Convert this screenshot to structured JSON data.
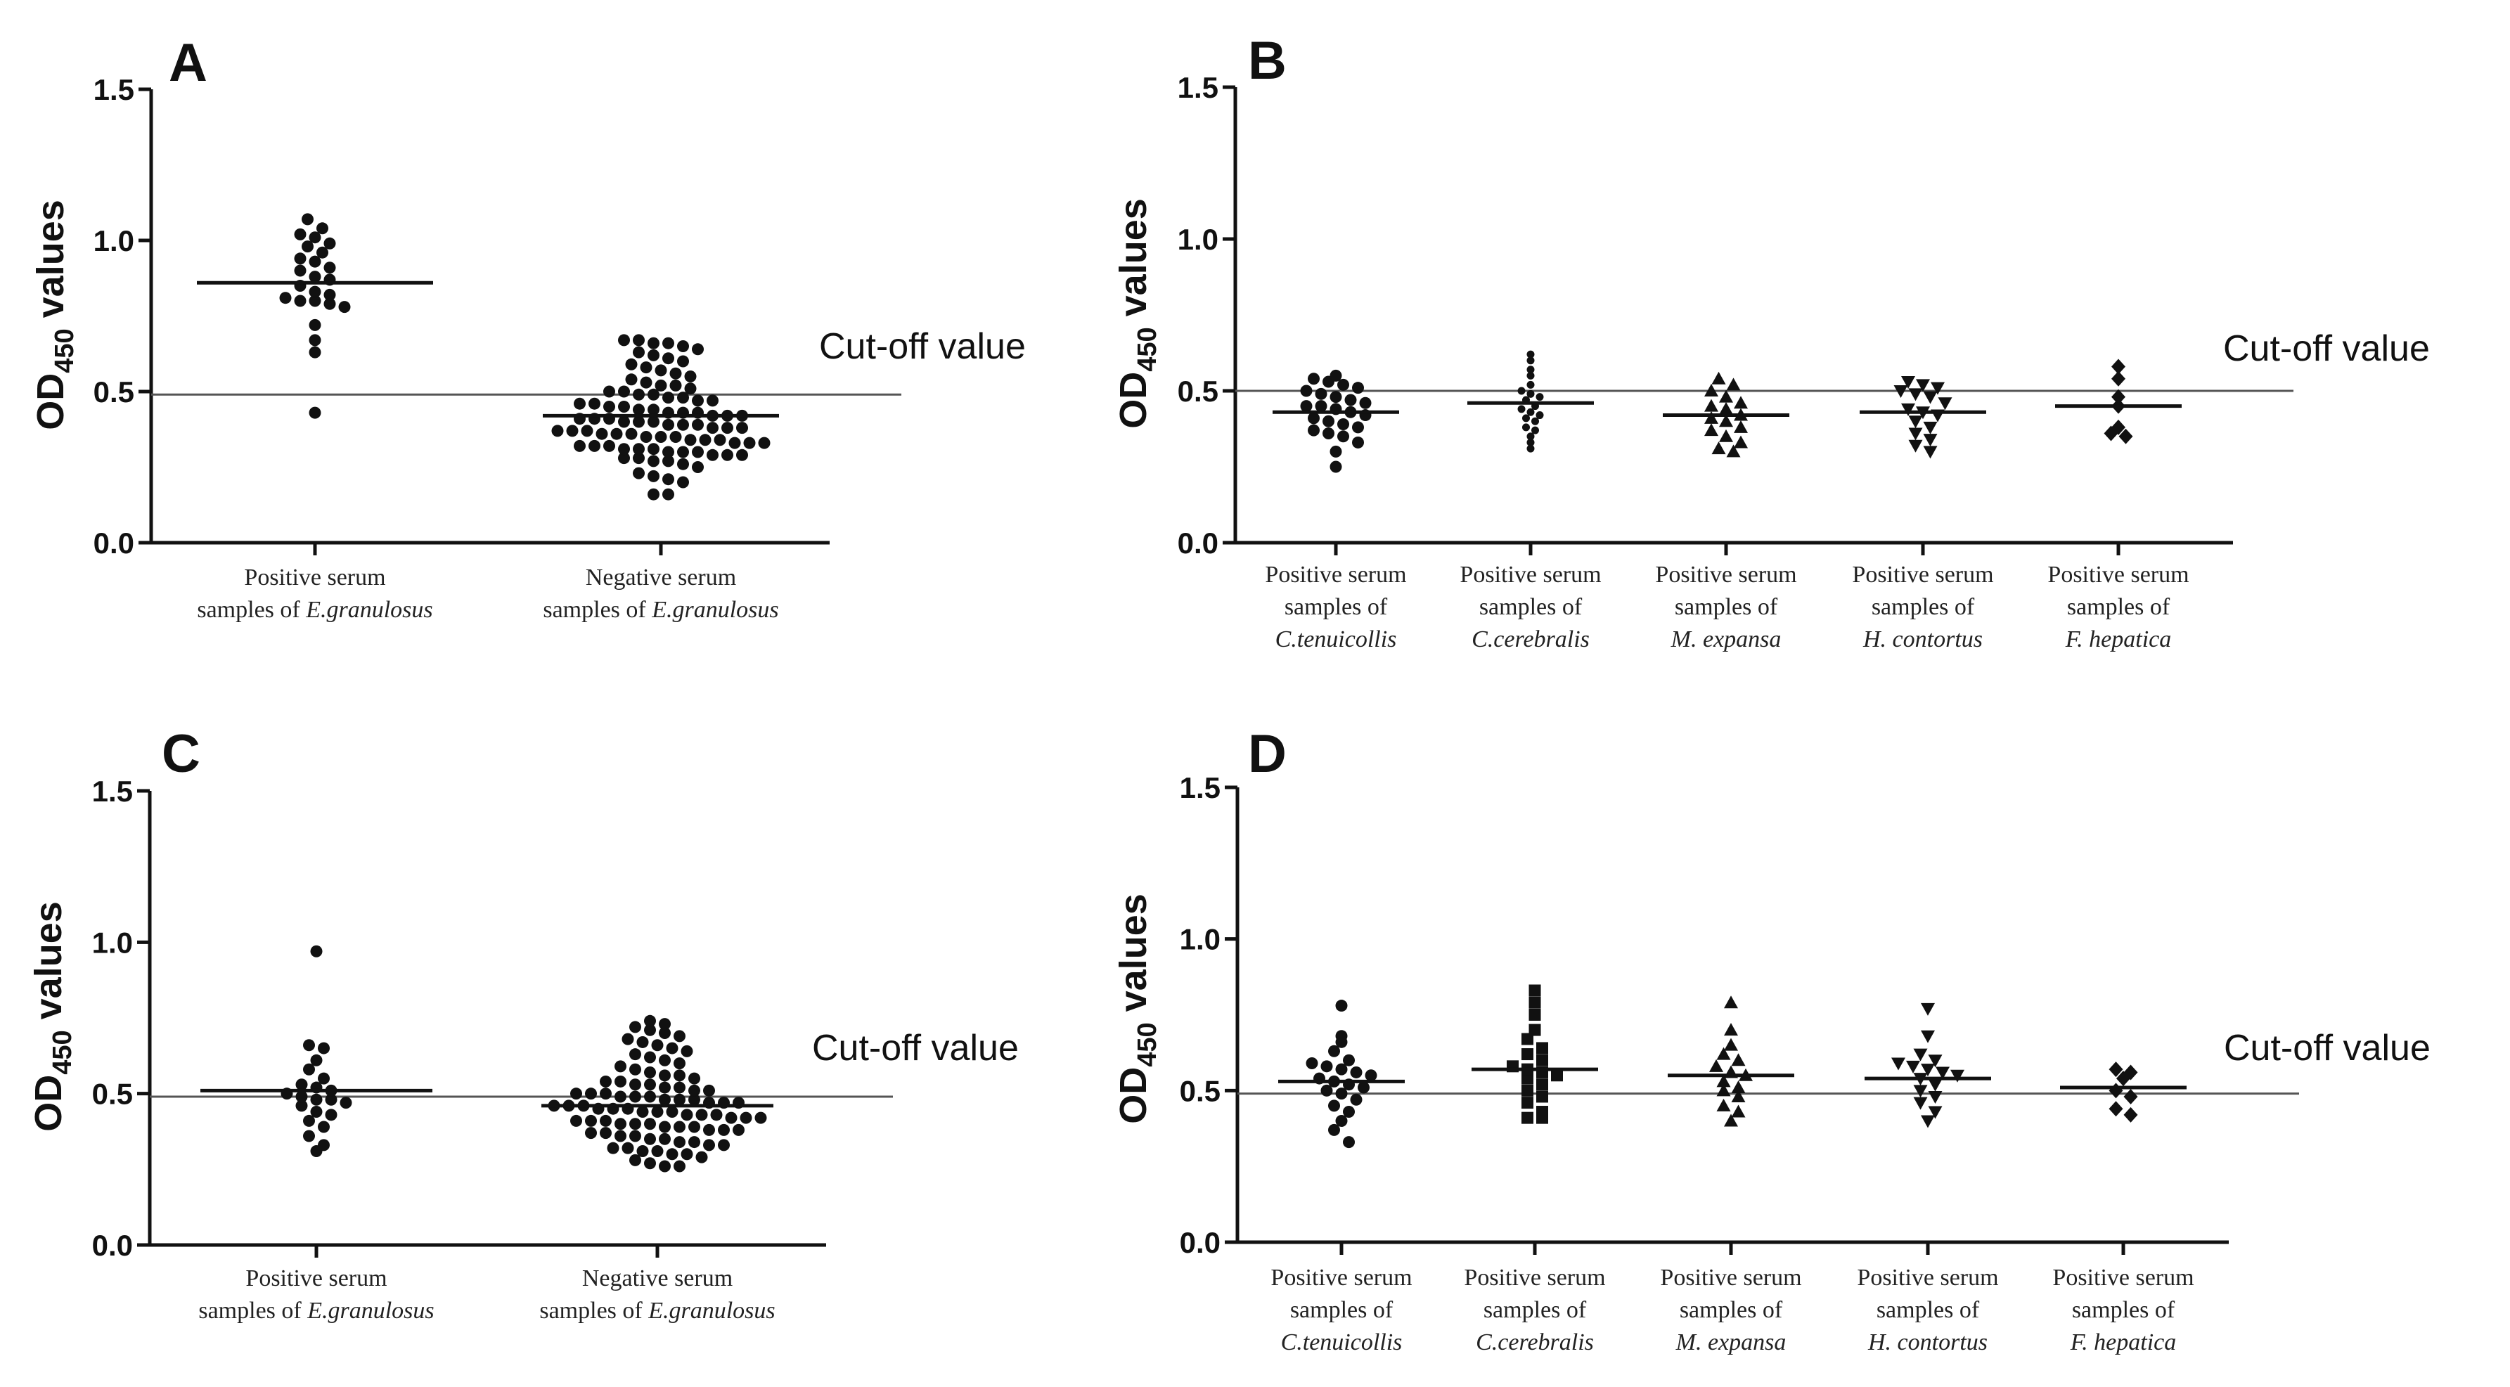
{
  "figure": {
    "axis_title_main": "OD",
    "axis_title_sub": "450",
    "axis_title_tail": " values",
    "cutoff_label": "Cut-off value",
    "y_ticks": [
      "0.0",
      "0.5",
      "1.0",
      "1.5"
    ]
  },
  "chart_data": [
    {
      "type": "scatter",
      "panel": "A",
      "ylim": [
        0,
        1.5
      ],
      "yticks": [
        0,
        0.5,
        1.0,
        1.5
      ],
      "cutoff": 0.49,
      "marker": "circle",
      "groups": [
        {
          "label_lines": [
            [
              "Positive serum"
            ],
            [
              "samples of ",
              "E.granulosus"
            ]
          ],
          "mean": 0.86,
          "values": [
            1.07,
            1.04,
            1.02,
            1.01,
            0.99,
            0.98,
            0.96,
            0.94,
            0.93,
            0.91,
            0.9,
            0.88,
            0.87,
            0.85,
            0.83,
            0.82,
            0.81,
            0.8,
            0.8,
            0.79,
            0.78,
            0.72,
            0.67,
            0.63,
            0.43
          ]
        },
        {
          "label_lines": [
            [
              "Negative serum"
            ],
            [
              "samples of ",
              "E.granulosus"
            ]
          ],
          "mean": 0.42,
          "values": [
            0.67,
            0.67,
            0.66,
            0.66,
            0.65,
            0.64,
            0.63,
            0.62,
            0.61,
            0.6,
            0.59,
            0.58,
            0.57,
            0.56,
            0.55,
            0.54,
            0.53,
            0.52,
            0.52,
            0.51,
            0.5,
            0.5,
            0.49,
            0.49,
            0.48,
            0.48,
            0.47,
            0.47,
            0.46,
            0.46,
            0.45,
            0.45,
            0.44,
            0.44,
            0.43,
            0.43,
            0.43,
            0.42,
            0.42,
            0.42,
            0.41,
            0.41,
            0.41,
            0.4,
            0.4,
            0.4,
            0.39,
            0.39,
            0.39,
            0.38,
            0.38,
            0.38,
            0.37,
            0.37,
            0.37,
            0.36,
            0.36,
            0.36,
            0.35,
            0.35,
            0.35,
            0.34,
            0.34,
            0.34,
            0.33,
            0.33,
            0.33,
            0.32,
            0.32,
            0.32,
            0.31,
            0.31,
            0.31,
            0.3,
            0.3,
            0.3,
            0.29,
            0.29,
            0.29,
            0.28,
            0.28,
            0.27,
            0.27,
            0.26,
            0.25,
            0.23,
            0.22,
            0.21,
            0.2,
            0.16,
            0.16
          ]
        }
      ]
    },
    {
      "type": "scatter",
      "panel": "B",
      "ylim": [
        0,
        1.5
      ],
      "yticks": [
        0,
        0.5,
        1.0,
        1.5
      ],
      "cutoff": 0.5,
      "groups": [
        {
          "marker": "circle",
          "label_lines": [
            [
              "Positive serum"
            ],
            [
              "samples of"
            ],
            [
              "",
              "C.tenuicollis"
            ]
          ],
          "mean": 0.43,
          "values": [
            0.55,
            0.54,
            0.53,
            0.52,
            0.51,
            0.5,
            0.49,
            0.48,
            0.47,
            0.46,
            0.45,
            0.45,
            0.44,
            0.43,
            0.42,
            0.41,
            0.4,
            0.39,
            0.38,
            0.37,
            0.36,
            0.35,
            0.33,
            0.3,
            0.25
          ]
        },
        {
          "marker": "circle-small",
          "label_lines": [
            [
              "Positive serum"
            ],
            [
              "samples of"
            ],
            [
              "",
              "C.cerebralis"
            ]
          ],
          "mean": 0.46,
          "values": [
            0.62,
            0.6,
            0.57,
            0.55,
            0.52,
            0.5,
            0.49,
            0.48,
            0.47,
            0.45,
            0.44,
            0.43,
            0.42,
            0.41,
            0.4,
            0.38,
            0.37,
            0.35,
            0.33,
            0.31
          ]
        },
        {
          "marker": "triangle-up",
          "label_lines": [
            [
              "Positive serum"
            ],
            [
              "samples of"
            ],
            [
              "",
              "M. expansa"
            ]
          ],
          "mean": 0.42,
          "values": [
            0.54,
            0.52,
            0.5,
            0.48,
            0.46,
            0.45,
            0.44,
            0.42,
            0.41,
            0.4,
            0.38,
            0.37,
            0.35,
            0.33,
            0.31,
            0.3
          ]
        },
        {
          "marker": "triangle-down",
          "label_lines": [
            [
              "Positive serum"
            ],
            [
              "samples of"
            ],
            [
              "",
              "H. contortus"
            ]
          ],
          "mean": 0.43,
          "values": [
            0.53,
            0.52,
            0.51,
            0.5,
            0.49,
            0.48,
            0.46,
            0.44,
            0.43,
            0.42,
            0.4,
            0.38,
            0.36,
            0.34,
            0.32,
            0.3
          ]
        },
        {
          "marker": "diamond",
          "label_lines": [
            [
              "Positive serum"
            ],
            [
              "samples of"
            ],
            [
              "",
              "F. hepatica"
            ]
          ],
          "mean": 0.45,
          "values": [
            0.58,
            0.54,
            0.48,
            0.45,
            0.38,
            0.36,
            0.35
          ]
        }
      ]
    },
    {
      "type": "scatter",
      "panel": "C",
      "ylim": [
        0,
        1.5
      ],
      "yticks": [
        0,
        0.5,
        1.0,
        1.5
      ],
      "cutoff": 0.49,
      "marker": "circle",
      "groups": [
        {
          "label_lines": [
            [
              "Positive serum"
            ],
            [
              "samples of ",
              "E.granulosus"
            ]
          ],
          "mean": 0.51,
          "values": [
            0.97,
            0.66,
            0.65,
            0.61,
            0.58,
            0.55,
            0.53,
            0.52,
            0.51,
            0.5,
            0.49,
            0.48,
            0.48,
            0.47,
            0.46,
            0.44,
            0.43,
            0.41,
            0.39,
            0.36,
            0.33,
            0.31
          ]
        },
        {
          "label_lines": [
            [
              "Negative serum"
            ],
            [
              "samples of ",
              "E.granulosus"
            ]
          ],
          "mean": 0.46,
          "values": [
            0.74,
            0.73,
            0.72,
            0.71,
            0.7,
            0.69,
            0.68,
            0.67,
            0.66,
            0.65,
            0.64,
            0.63,
            0.62,
            0.61,
            0.6,
            0.59,
            0.58,
            0.57,
            0.56,
            0.56,
            0.55,
            0.54,
            0.54,
            0.53,
            0.53,
            0.52,
            0.52,
            0.51,
            0.51,
            0.5,
            0.5,
            0.5,
            0.49,
            0.49,
            0.49,
            0.48,
            0.48,
            0.48,
            0.47,
            0.47,
            0.47,
            0.46,
            0.46,
            0.46,
            0.45,
            0.45,
            0.45,
            0.44,
            0.44,
            0.44,
            0.43,
            0.43,
            0.43,
            0.42,
            0.42,
            0.42,
            0.41,
            0.41,
            0.41,
            0.4,
            0.4,
            0.4,
            0.39,
            0.39,
            0.39,
            0.38,
            0.38,
            0.38,
            0.37,
            0.37,
            0.36,
            0.36,
            0.35,
            0.35,
            0.34,
            0.34,
            0.33,
            0.33,
            0.32,
            0.32,
            0.31,
            0.31,
            0.3,
            0.3,
            0.29,
            0.28,
            0.27,
            0.26,
            0.26
          ]
        }
      ]
    },
    {
      "type": "scatter",
      "panel": "D",
      "ylim": [
        0,
        1.5
      ],
      "yticks": [
        0,
        0.5,
        1.0,
        1.5
      ],
      "cutoff": 0.49,
      "groups": [
        {
          "marker": "circle",
          "label_lines": [
            [
              "Positive serum"
            ],
            [
              "samples of"
            ],
            [
              "",
              "C.tenuicollis"
            ]
          ],
          "mean": 0.53,
          "values": [
            0.78,
            0.68,
            0.66,
            0.63,
            0.6,
            0.59,
            0.58,
            0.57,
            0.56,
            0.55,
            0.54,
            0.53,
            0.52,
            0.51,
            0.5,
            0.49,
            0.47,
            0.45,
            0.43,
            0.4,
            0.37,
            0.33
          ]
        },
        {
          "marker": "square",
          "label_lines": [
            [
              "Positive serum"
            ],
            [
              "samples of"
            ],
            [
              "",
              "C.cerebralis"
            ]
          ],
          "mean": 0.57,
          "values": [
            0.83,
            0.79,
            0.75,
            0.7,
            0.67,
            0.64,
            0.62,
            0.6,
            0.58,
            0.57,
            0.56,
            0.55,
            0.54,
            0.52,
            0.5,
            0.48,
            0.46,
            0.43,
            0.41,
            0.41
          ]
        },
        {
          "marker": "triangle-up",
          "label_lines": [
            [
              "Positive serum"
            ],
            [
              "samples of"
            ],
            [
              "",
              "M. expansa"
            ]
          ],
          "mean": 0.55,
          "values": [
            0.79,
            0.7,
            0.65,
            0.62,
            0.6,
            0.58,
            0.56,
            0.55,
            0.53,
            0.51,
            0.5,
            0.48,
            0.45,
            0.43,
            0.4
          ]
        },
        {
          "marker": "triangle-down",
          "label_lines": [
            [
              "Positive serum"
            ],
            [
              "samples of"
            ],
            [
              "",
              "H. contortus"
            ]
          ],
          "mean": 0.54,
          "values": [
            0.77,
            0.68,
            0.62,
            0.6,
            0.59,
            0.58,
            0.57,
            0.56,
            0.55,
            0.54,
            0.52,
            0.5,
            0.48,
            0.46,
            0.43,
            0.4
          ]
        },
        {
          "marker": "diamond",
          "label_lines": [
            [
              "Positive serum"
            ],
            [
              "samples of"
            ],
            [
              "",
              "F. hepatica"
            ]
          ],
          "mean": 0.51,
          "values": [
            0.57,
            0.56,
            0.54,
            0.5,
            0.48,
            0.44,
            0.42
          ]
        }
      ]
    }
  ]
}
